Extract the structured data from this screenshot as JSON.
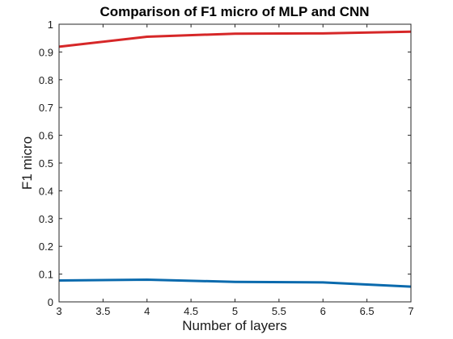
{
  "chart_data": {
    "type": "line",
    "title": "Comparison of F1 micro of MLP and CNN",
    "xlabel": "Number of layers",
    "ylabel": "F1 micro",
    "xlim": [
      3,
      7
    ],
    "ylim": [
      0,
      1
    ],
    "x_ticks": [
      "3",
      "3.5",
      "4",
      "4.5",
      "5",
      "5.5",
      "6",
      "6.5",
      "7"
    ],
    "y_ticks": [
      "0",
      "0.1",
      "0.2",
      "0.3",
      "0.4",
      "0.5",
      "0.6",
      "0.7",
      "0.8",
      "0.9",
      "1"
    ],
    "grid": false,
    "legend": "none",
    "x": [
      3,
      4,
      5,
      6,
      7
    ],
    "series": [
      {
        "color": "#d62728",
        "values": [
          0.919,
          0.955,
          0.966,
          0.967,
          0.973
        ]
      },
      {
        "color": "#0a6aad",
        "values": [
          0.077,
          0.08,
          0.072,
          0.07,
          0.055
        ]
      }
    ]
  }
}
